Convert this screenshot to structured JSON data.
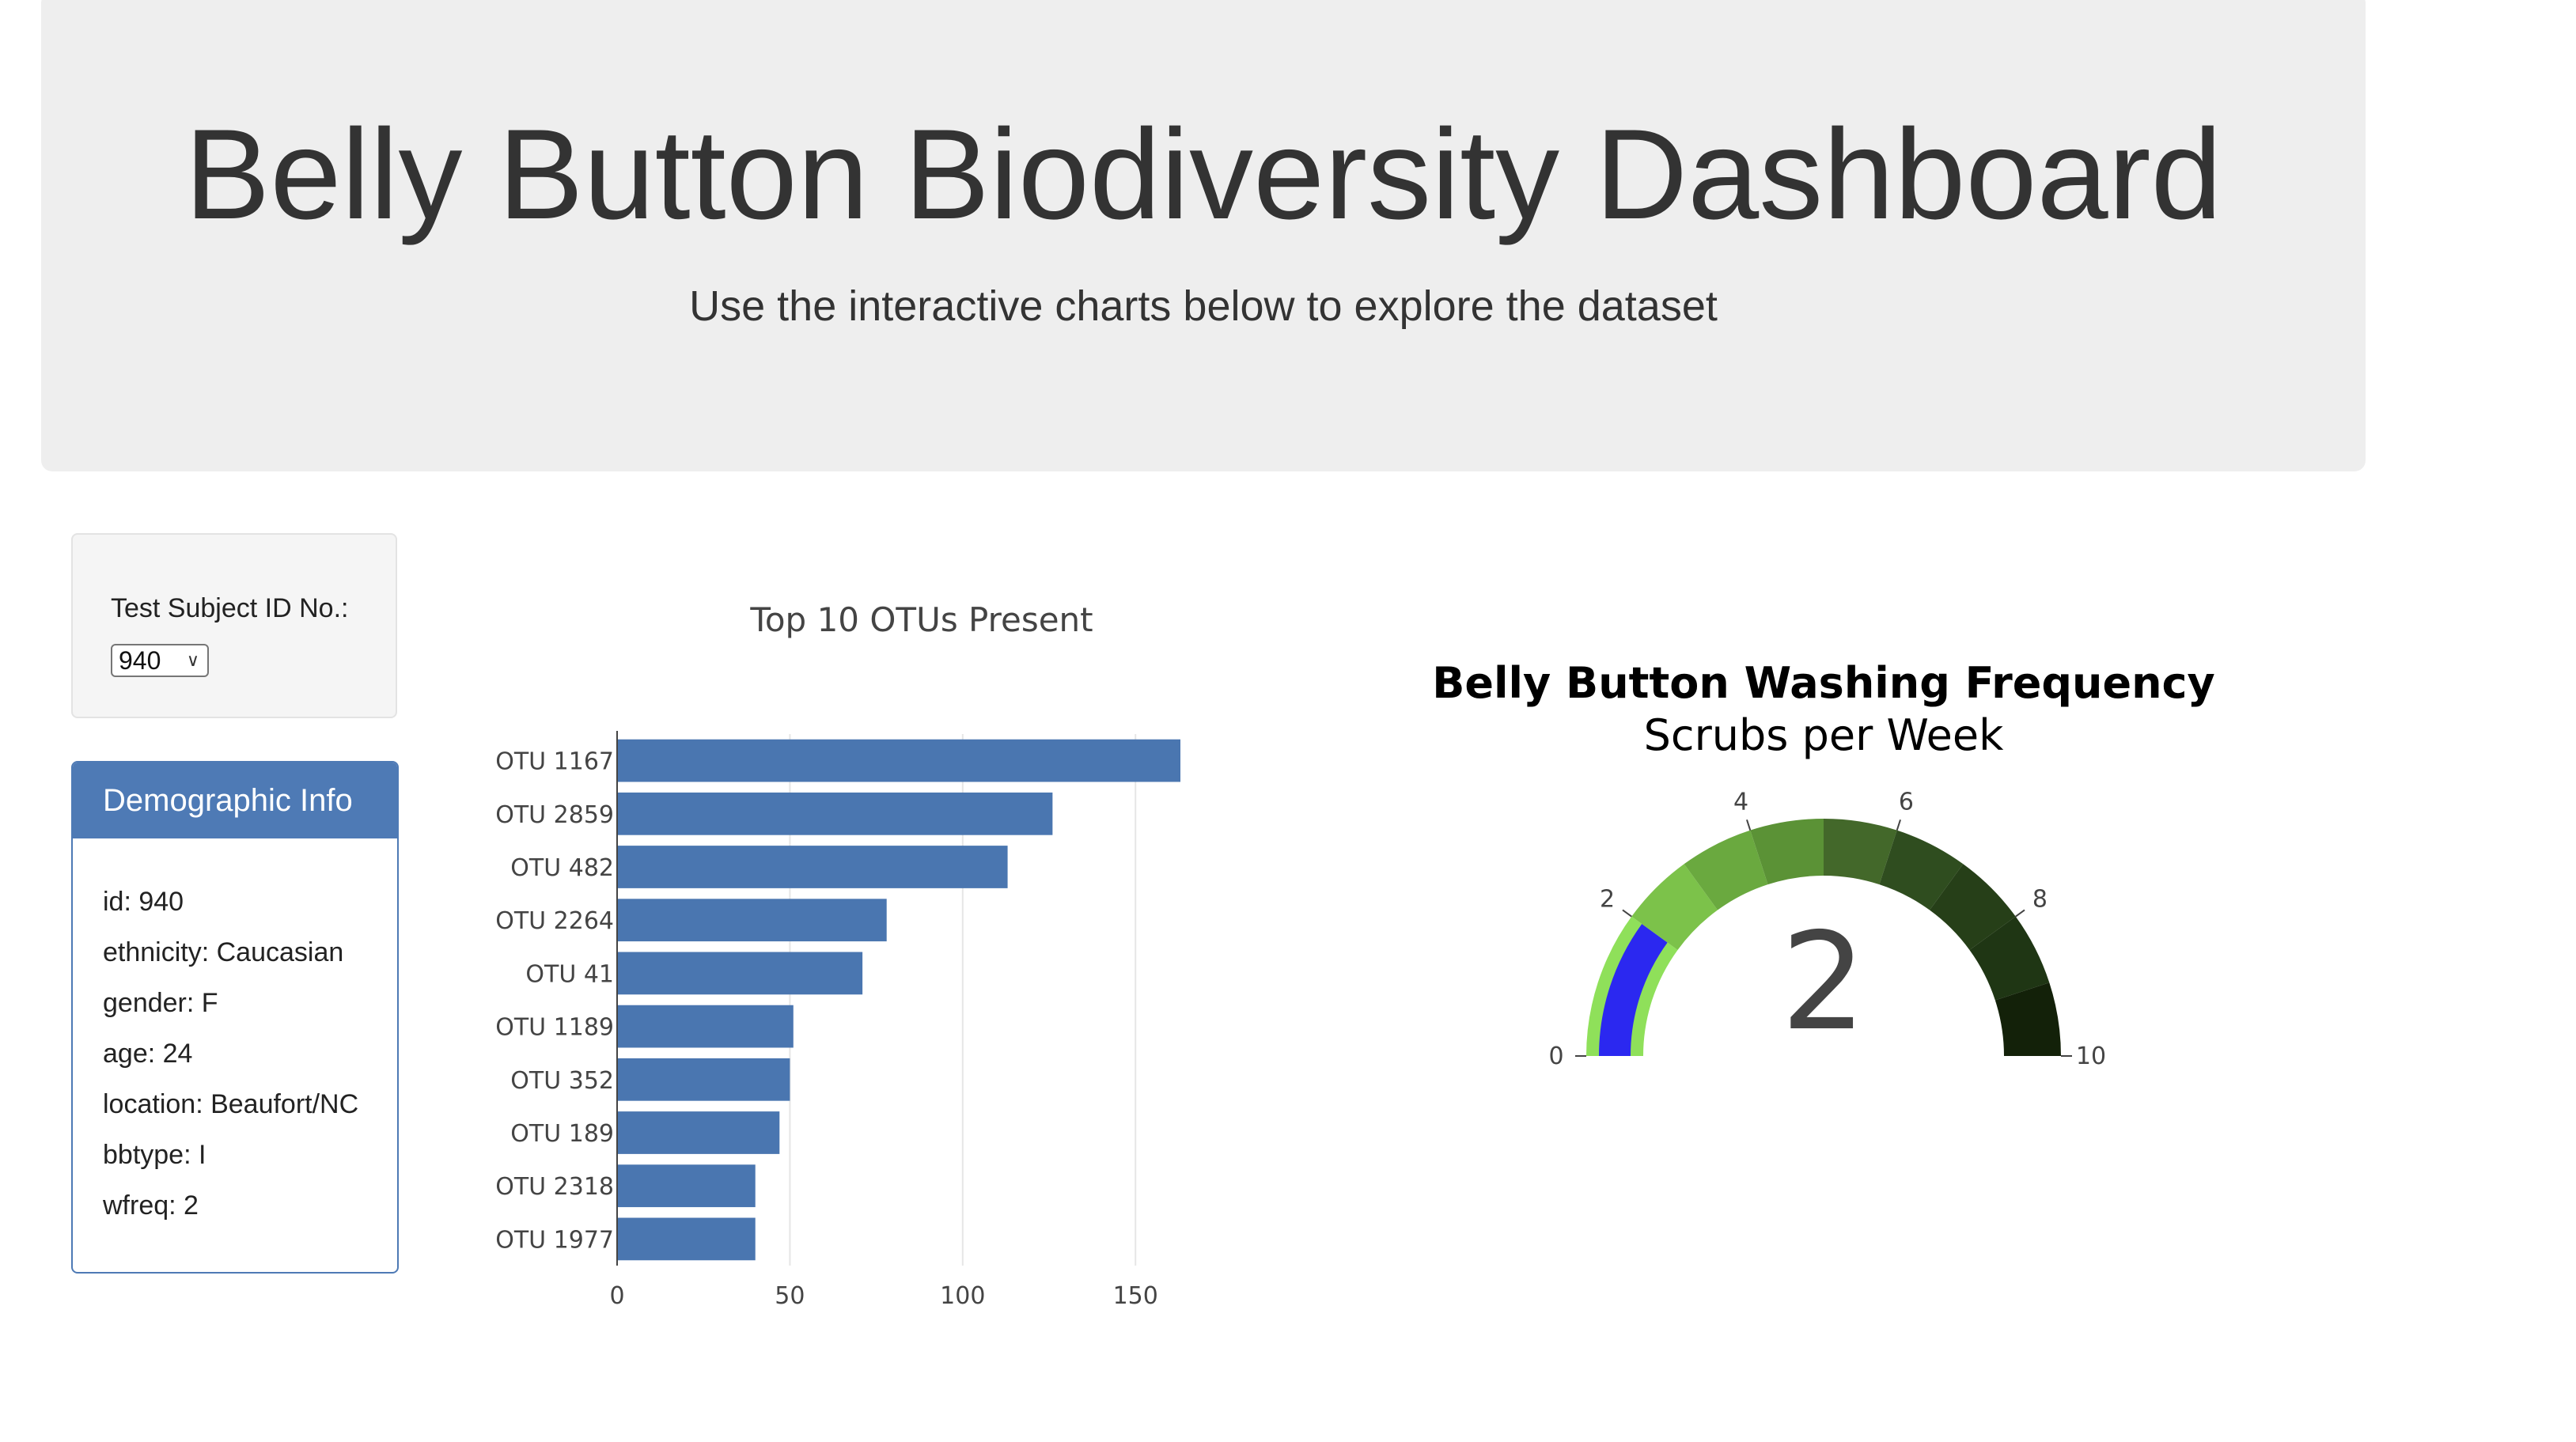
{
  "header": {
    "title": "Belly Button Biodiversity Dashboard",
    "subtitle": "Use the interactive charts below to explore the dataset"
  },
  "selector": {
    "label": "Test Subject ID No.:",
    "selected": "940"
  },
  "demographics": {
    "heading": "Demographic Info",
    "lines": [
      "id: 940",
      "ethnicity: Caucasian",
      "gender: F",
      "age: 24",
      "location: Beaufort/NC",
      "bbtype: I",
      "wfreq: 2"
    ]
  },
  "chart_data": [
    {
      "type": "bar",
      "orientation": "horizontal",
      "title": "Top 10 OTUs Present",
      "categories": [
        "OTU 1167",
        "OTU 2859",
        "OTU 482",
        "OTU 2264",
        "OTU 41",
        "OTU 1189",
        "OTU 352",
        "OTU 189",
        "OTU 2318",
        "OTU 1977"
      ],
      "values": [
        163,
        126,
        113,
        78,
        71,
        51,
        50,
        47,
        40,
        40
      ],
      "xlim": [
        0,
        163
      ],
      "xticks": [
        0,
        50,
        100,
        150
      ],
      "color": "#4a76b0",
      "grid": true
    },
    {
      "type": "gauge",
      "title": "Belly Button Washing Frequency",
      "subtitle": "Scrubs per Week",
      "value": 2,
      "range": [
        0,
        10
      ],
      "ticks": [
        0,
        2,
        4,
        6,
        8,
        10
      ],
      "bar_color": "#2b28f0",
      "steps": [
        {
          "from": 0,
          "to": 2,
          "color": "#8fe05a"
        },
        {
          "from": 2,
          "to": 3,
          "color": "#7cc24a"
        },
        {
          "from": 3,
          "to": 4,
          "color": "#6aa93f"
        },
        {
          "from": 4,
          "to": 5,
          "color": "#5b9236"
        },
        {
          "from": 5,
          "to": 6,
          "color": "#43682a"
        },
        {
          "from": 6,
          "to": 7,
          "color": "#2f4d1f"
        },
        {
          "from": 7,
          "to": 8,
          "color": "#263f18"
        },
        {
          "from": 8,
          "to": 9,
          "color": "#1f3614"
        },
        {
          "from": 9,
          "to": 10,
          "color": "#132109"
        }
      ]
    }
  ]
}
